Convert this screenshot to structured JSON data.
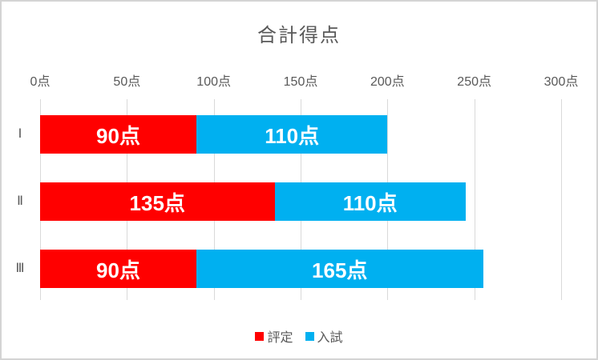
{
  "chart_data": {
    "type": "bar",
    "orientation": "horizontal-stacked",
    "title": "合計得点",
    "categories": [
      "Ⅰ",
      "Ⅱ",
      "Ⅲ"
    ],
    "series": [
      {
        "name": "評定",
        "color": "#ff0000",
        "values": [
          90,
          135,
          90
        ],
        "labels": [
          "90点",
          "135点",
          "90点"
        ]
      },
      {
        "name": "入試",
        "color": "#00b0f0",
        "values": [
          110,
          110,
          165
        ],
        "labels": [
          "110点",
          "110点",
          "165点"
        ]
      }
    ],
    "totals": [
      200,
      245,
      255
    ],
    "x_axis": {
      "position": "top",
      "min": 0,
      "max": 300,
      "tick_interval": 50,
      "tick_labels": [
        "0点",
        "50点",
        "100点",
        "150点",
        "200点",
        "250点",
        "300点"
      ]
    },
    "grid": true,
    "legend_position": "bottom",
    "colors": {
      "background": "#ffffff",
      "border": "#d4d4d4",
      "gridline": "#d9d9d9",
      "title_text": "#595959",
      "axis_text": "#595959",
      "bar_label_text": "#ffffff"
    }
  }
}
